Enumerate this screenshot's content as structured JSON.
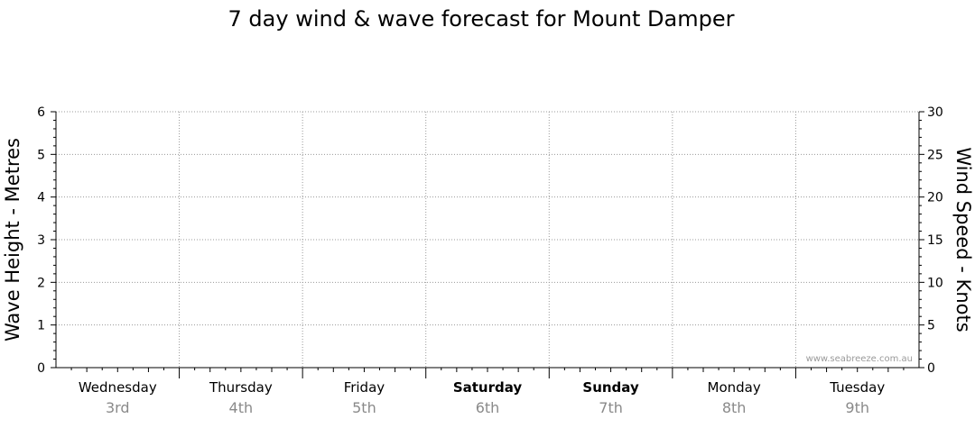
{
  "chart_data": {
    "type": "line",
    "title": "7 day wind & wave forecast for Mount Damper",
    "ylabel_left": "Wave Height - Metres",
    "ylabel_right": "Wind Speed - Knots",
    "ylim_left": [
      0,
      6
    ],
    "yticks_left": [
      0,
      1,
      2,
      3,
      4,
      5,
      6
    ],
    "ylim_right": [
      0,
      30
    ],
    "yticks_right": [
      0,
      5,
      10,
      15,
      20,
      25,
      30
    ],
    "grid": true,
    "days": [
      {
        "name": "Wednesday",
        "date": "3rd",
        "bold": false
      },
      {
        "name": "Thursday",
        "date": "4th",
        "bold": false
      },
      {
        "name": "Friday",
        "date": "5th",
        "bold": false
      },
      {
        "name": "Saturday",
        "date": "6th",
        "bold": true
      },
      {
        "name": "Sunday",
        "date": "7th",
        "bold": true
      },
      {
        "name": "Monday",
        "date": "8th",
        "bold": false
      },
      {
        "name": "Tuesday",
        "date": "9th",
        "bold": false
      }
    ],
    "series": [],
    "watermark": "www.seabreeze.com.au"
  }
}
